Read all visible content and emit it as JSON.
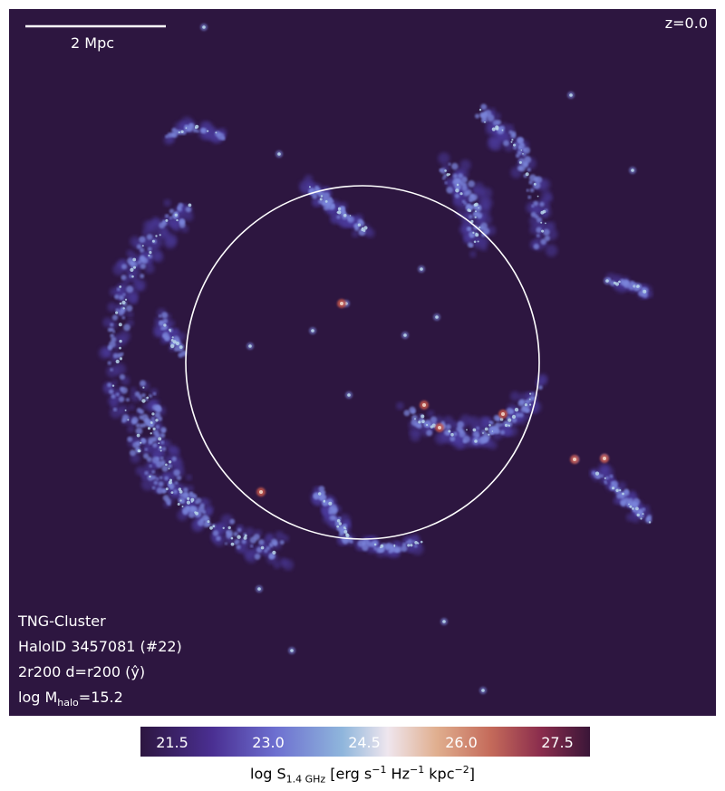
{
  "scalebar": {
    "label": "2 Mpc"
  },
  "redshift": "z=0.0",
  "info": {
    "simulation": "TNG-Cluster",
    "halo": "HaloID 3457081 (#22)",
    "projection": "2r200 d=r200 (ŷ)",
    "mass_prefix": "log M",
    "mass_sub": "halo",
    "mass_suffix": "=15.2"
  },
  "colorbar": {
    "ticks": [
      "21.5",
      "23.0",
      "24.5",
      "26.0",
      "27.5"
    ],
    "label_prefix": "log S",
    "label_sub": "1.4 GHz",
    "label_mid": " [erg s",
    "exp1": "−1",
    "label_hz": " Hz",
    "exp2": "−1",
    "label_kpc": " kpc",
    "exp3": "−2",
    "label_end": "]"
  },
  "colors": {
    "background": "#2d1640",
    "faint": "#4b3a9c",
    "mid": "#7b86dc",
    "bright": "#b9d6ea",
    "hot": "#c6584d",
    "circle": "#ffffff"
  }
}
